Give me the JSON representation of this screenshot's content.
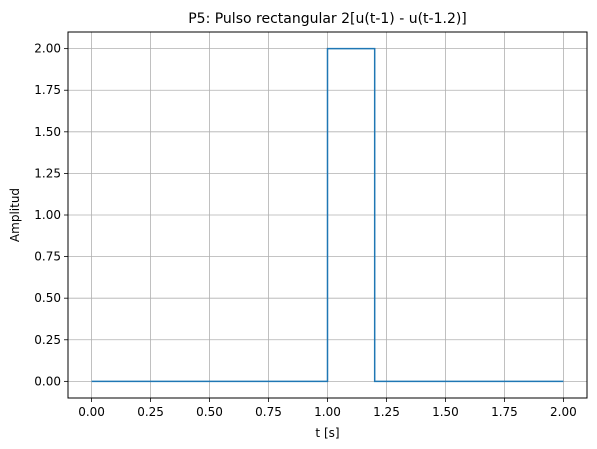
{
  "chart_data": {
    "type": "line",
    "title": "P5: Pulso rectangular 2[u(t-1) - u(t-1.2)]",
    "xlabel": "t [s]",
    "ylabel": "Amplitud",
    "xlim": [
      -0.1,
      2.1
    ],
    "ylim": [
      -0.1,
      2.1
    ],
    "grid": true,
    "xticks": [
      0.0,
      0.25,
      0.5,
      0.75,
      1.0,
      1.25,
      1.5,
      1.75,
      2.0
    ],
    "xtick_labels": [
      "0.00",
      "0.25",
      "0.50",
      "0.75",
      "1.00",
      "1.25",
      "1.50",
      "1.75",
      "2.00"
    ],
    "yticks": [
      0.0,
      0.25,
      0.5,
      0.75,
      1.0,
      1.25,
      1.5,
      1.75,
      2.0
    ],
    "ytick_labels": [
      "0.00",
      "0.25",
      "0.50",
      "0.75",
      "1.00",
      "1.25",
      "1.50",
      "1.75",
      "2.00"
    ],
    "series": [
      {
        "color": "#1f77b4",
        "x": [
          0.0,
          1.0,
          1.0,
          1.2,
          1.2,
          2.0
        ],
        "y": [
          0.0,
          0.0,
          2.0,
          2.0,
          0.0,
          0.0
        ]
      }
    ]
  }
}
